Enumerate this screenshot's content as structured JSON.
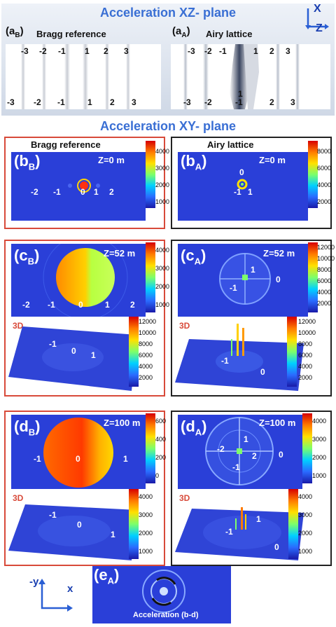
{
  "xz": {
    "title": "Acceleration XZ- plane",
    "aB_label": "(a",
    "aB_sub": "B",
    "aB_close": ")",
    "aB_title": "Bragg reference",
    "aA_label": "(a",
    "aA_sub": "A",
    "aA_close": ")",
    "aA_title": "Airy lattice",
    "axis_x": "X",
    "axis_z": "Z",
    "bragg_top": [
      "-3",
      "-2",
      "-1",
      "1",
      "2",
      "3"
    ],
    "bragg_bottom": [
      "-3",
      "-2",
      "-1",
      "1",
      "2",
      "3"
    ],
    "airy_top": [
      "-3",
      "-2",
      "-1",
      "1",
      "2",
      "3"
    ],
    "airy_mid": "1",
    "airy_bottom": [
      "-3",
      "-2",
      "-1",
      "2",
      "3"
    ]
  },
  "xy": {
    "title": "Acceleration XY- plane",
    "bragg_title": "Bragg reference",
    "airy_title": "Airy lattice"
  },
  "b": {
    "bB_label": "(b",
    "bB_sub": "B",
    "close": ")",
    "bA_label": "(b",
    "bA_sub": "A",
    "z": "Z=0 m",
    "bragg_orders": [
      "-2",
      "-1",
      "0",
      "1",
      "2"
    ],
    "airy_orders": [
      "0",
      "-1",
      "1"
    ],
    "cbar_left": [
      "4000",
      "3000",
      "2000",
      "1000"
    ],
    "cbar_right": [
      "8000",
      "6000",
      "4000",
      "2000"
    ]
  },
  "c": {
    "cB_label": "(c",
    "cB_sub": "B",
    "close": ")",
    "cA_label": "(c",
    "cA_sub": "A",
    "z": "Z=52 m",
    "bragg_orders": [
      "-2",
      "-1",
      "0",
      "1",
      "2"
    ],
    "airy_orders": [
      "1",
      "-1",
      "0"
    ],
    "cbar_left": [
      "4000",
      "3000",
      "2000",
      "1000"
    ],
    "cbar_right": [
      "12000",
      "10000",
      "8000",
      "6000",
      "4000",
      "2000"
    ],
    "tag3d": "3D",
    "bragg3d_orders": [
      "-1",
      "0",
      "1"
    ],
    "airy3d_orders": [
      "-1",
      "0"
    ],
    "cbar3d_left": [
      "12000",
      "10000",
      "8000",
      "6000",
      "4000",
      "2000"
    ],
    "cbar3d_right": [
      "12000",
      "10000",
      "8000",
      "6000",
      "4000",
      "2000"
    ]
  },
  "d": {
    "dB_label": "(d",
    "dB_sub": "B",
    "close": ")",
    "dA_label": "(d",
    "dA_sub": "A",
    "z": "Z=100 m",
    "bragg_orders": [
      "-1",
      "0",
      "1"
    ],
    "airy_orders": [
      "1",
      "-2",
      "2",
      "-1",
      "0"
    ],
    "cbar_left": [
      "600",
      "400",
      "200",
      "0"
    ],
    "cbar_right": [
      "4000",
      "3000",
      "2000",
      "1000"
    ],
    "tag3d": "3D",
    "bragg3d_orders": [
      "-1",
      "0",
      "1"
    ],
    "airy3d_orders": [
      "1",
      "-1",
      "0"
    ],
    "cbar3d_left": [
      "4000",
      "3000",
      "2000",
      "1000"
    ],
    "cbar3d_right": [
      "4000",
      "3000",
      "2000",
      "1000"
    ]
  },
  "e": {
    "label": "(e",
    "sub": "A",
    "close": ")",
    "caption": "Acceleration (b-d)",
    "axis_y": "-y",
    "axis_x": "x"
  }
}
